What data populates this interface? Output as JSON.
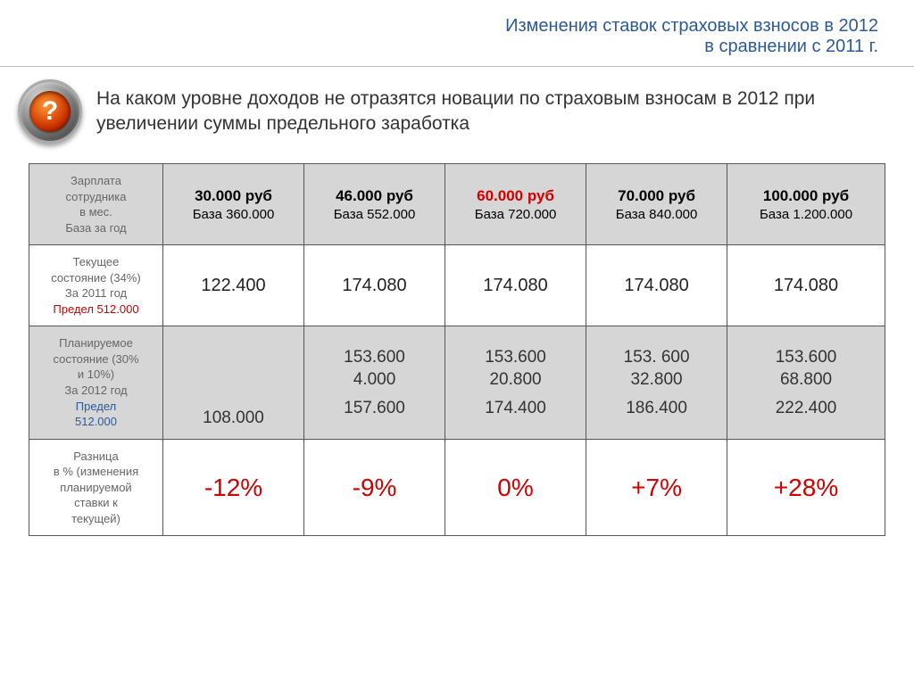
{
  "title": {
    "line1": "Изменения ставок страховых взносов в 2012",
    "line2": "в сравнении с 2011 г.",
    "color": "#2a5a9a",
    "fontsize": 20
  },
  "subtitle": "На каком уровне доходов не отразятся новации по страховым взносам в 2012 при увеличении суммы  предельного заработка",
  "icon": {
    "glyph": "?",
    "outer_gradient": [
      "#e0e0e0",
      "#2a2a2a"
    ],
    "inner_gradient": [
      "#ff9933",
      "#cc3300"
    ]
  },
  "table": {
    "type": "table",
    "background_color": "#ffffff",
    "alt_row_color": "#d6d6d6",
    "border_color": "#555555",
    "label_text_color": "#666666",
    "highlight_color": "#d00000",
    "blue_text_color": "#2a5a9a",
    "header": {
      "label_lines": [
        "Зарплата",
        "сотрудника",
        "в мес.",
        "База за год"
      ],
      "columns": [
        {
          "salary": "30.000 руб",
          "base": "База 360.000",
          "highlight": false
        },
        {
          "salary": "46.000 руб",
          "base": "База 552.000",
          "highlight": false
        },
        {
          "salary": "60.000 руб",
          "base": "База 720.000",
          "highlight": true
        },
        {
          "salary": "70.000 руб",
          "base": "База 840.000",
          "highlight": false
        },
        {
          "salary": "100.000 руб",
          "base": "База 1.200.000",
          "highlight": false
        }
      ]
    },
    "row_current": {
      "label_lines": [
        "Текущее",
        "состояние (34%)",
        "За 2011 год"
      ],
      "label_red": "Предел 512.000",
      "values": [
        "122.400",
        "174.080",
        "174.080",
        "174.080",
        "174.080"
      ]
    },
    "row_planned": {
      "label_lines": [
        "Планируемое",
        "состояние (30%",
        "и 10%)",
        "За 2012 год"
      ],
      "label_blue_lines": [
        "Предел",
        "512.000"
      ],
      "cells": [
        {
          "lines": [],
          "sum": "108.000"
        },
        {
          "lines": [
            "153.600",
            "4.000"
          ],
          "sum": "157.600"
        },
        {
          "lines": [
            "153.600",
            "20.800"
          ],
          "sum": "174.400"
        },
        {
          "lines": [
            "153. 600",
            "32.800"
          ],
          "sum": "186.400"
        },
        {
          "lines": [
            "153.600",
            "68.800"
          ],
          "sum": "222.400"
        }
      ]
    },
    "row_diff": {
      "label_lines": [
        "Разница",
        "в % (изменения",
        "планируемой",
        "ставки к",
        "текущей)"
      ],
      "values": [
        "-12%",
        "-9%",
        "0%",
        "+7%",
        "+28%"
      ]
    }
  }
}
